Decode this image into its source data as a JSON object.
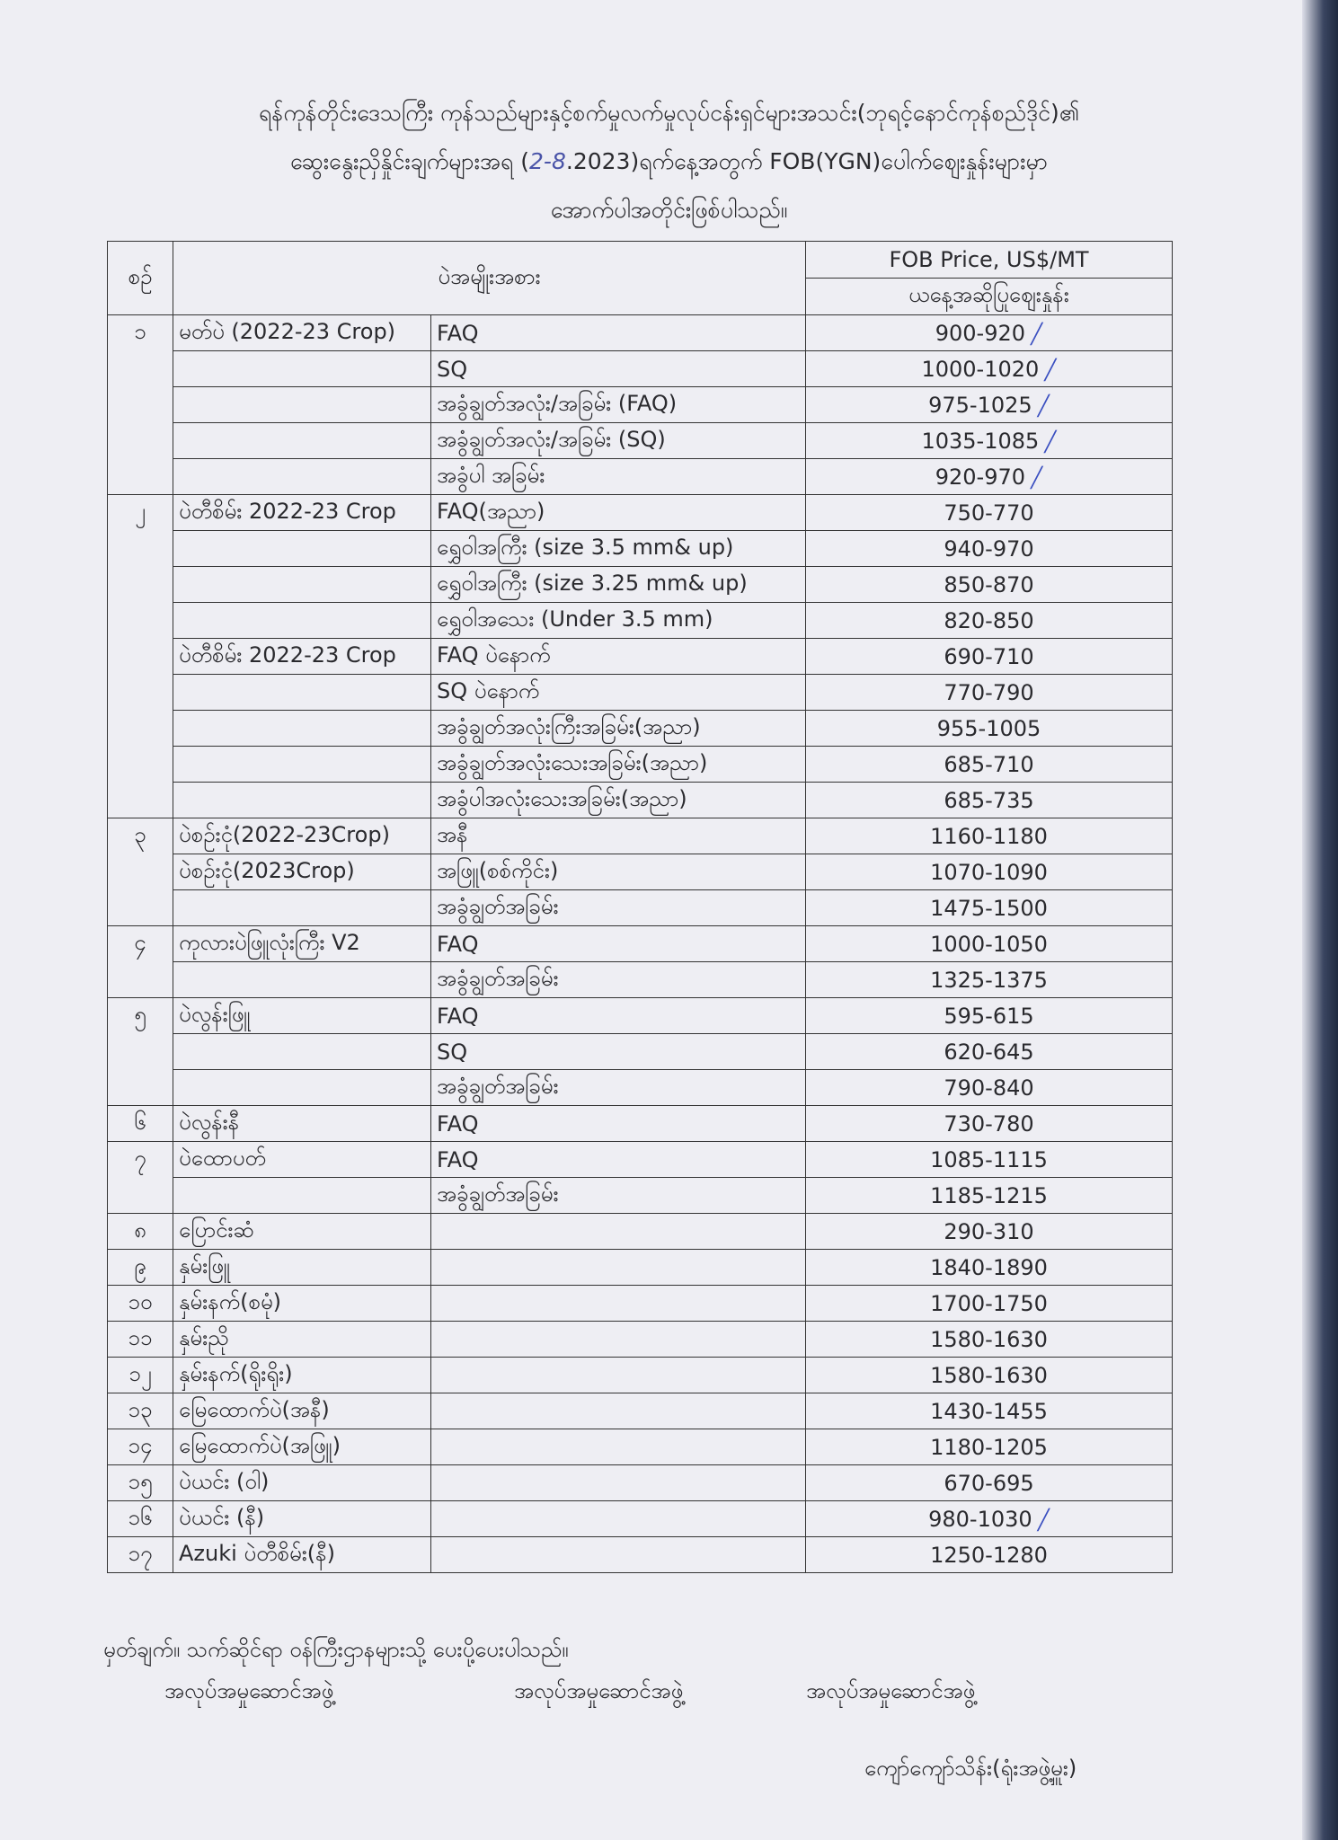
{
  "title": {
    "line1": "ရန်ကုန်တိုင်းဒေသကြီး ကုန်သည်များနှင့်စက်မှုလက်မှုလုပ်ငန်းရှင်များအသင်း(ဘုရင့်နောင်ကုန်စည်ဒိုင်)၏",
    "line2_pre": "ဆွေးနွေးညှိနှိုင်းချက်များအရ (",
    "line2_date": "2-8",
    "line2_post": ".2023)ရက်နေ့အတွက် FOB(YGN)ပေါက်ဈေးနှုန်းများမှာ",
    "line3": "အောက်ပါအတိုင်းဖြစ်ပါသည်။"
  },
  "table": {
    "headers": {
      "no": "စဉ်",
      "type": "ပဲအမျိုးအစား",
      "price": "FOB Price, US$/MT",
      "price_sub": "ယနေ့အဆိုပြုဈေးနှုန်း"
    },
    "check_color": "#3a4fc0",
    "rows": [
      {
        "no": "၁",
        "cat": "မတ်ပဲ (2022-23 Crop)",
        "sub": "FAQ",
        "price": "900-920",
        "check": true
      },
      {
        "no": "",
        "cat": "",
        "sub": "SQ",
        "price": "1000-1020",
        "check": true
      },
      {
        "no": "",
        "cat": "",
        "sub": "အခွံချွတ်အလုံး/အခြမ်း (FAQ)",
        "price": "975-1025",
        "check": true
      },
      {
        "no": "",
        "cat": "",
        "sub": "အခွံချွတ်အလုံး/အခြမ်း (SQ)",
        "price": "1035-1085",
        "check": true
      },
      {
        "no": "",
        "cat": "",
        "sub": "အခွံပါ အခြမ်း",
        "price": "920-970",
        "check": true
      },
      {
        "no": "၂",
        "cat": "ပဲတီစိမ်း 2022-23 Crop",
        "sub": "FAQ(အညာ)",
        "price": "750-770"
      },
      {
        "no": "",
        "cat": "",
        "sub": "ရွှေဝါအကြီး (size 3.5 mm& up)",
        "price": "940-970"
      },
      {
        "no": "",
        "cat": "",
        "sub": "ရွှေဝါအကြီး (size 3.25 mm& up)",
        "price": "850-870"
      },
      {
        "no": "",
        "cat": "",
        "sub": "ရွှေဝါအသေး (Under 3.5 mm)",
        "price": "820-850"
      },
      {
        "no": "",
        "cat": "ပဲတီစိမ်း 2022-23 Crop",
        "sub": "FAQ ပဲနောက်",
        "price": "690-710"
      },
      {
        "no": "",
        "cat": "",
        "sub": "SQ ပဲနောက်",
        "price": "770-790"
      },
      {
        "no": "",
        "cat": "",
        "sub": "အခွံချွတ်အလုံးကြီးအခြမ်း(အညာ)",
        "price": "955-1005"
      },
      {
        "no": "",
        "cat": "",
        "sub": "အခွံချွတ်အလုံးသေးအခြမ်း(အညာ)",
        "price": "685-710"
      },
      {
        "no": "",
        "cat": "",
        "sub": "အခွံပါအလုံးသေးအခြမ်း(အညာ)",
        "price": "685-735"
      },
      {
        "no": "၃",
        "cat": "ပဲစဉ်းငုံ(2022-23Crop)",
        "sub": "အနီ",
        "price": "1160-1180"
      },
      {
        "no": "",
        "cat": "ပဲစဉ်းငုံ(2023Crop)",
        "sub": "အဖြူ(စစ်ကိုင်း)",
        "price": "1070-1090"
      },
      {
        "no": "",
        "cat": "",
        "sub": "အခွံချွတ်အခြမ်း",
        "price": "1475-1500"
      },
      {
        "no": "၄",
        "cat": "ကုလားပဲဖြူလုံးကြီး V2",
        "sub": "FAQ",
        "price": "1000-1050"
      },
      {
        "no": "",
        "cat": "",
        "sub": "အခွံချွတ်အခြမ်း",
        "price": "1325-1375"
      },
      {
        "no": "၅",
        "cat": "ပဲလွန်းဖြူ",
        "sub": "FAQ",
        "price": "595-615"
      },
      {
        "no": "",
        "cat": "",
        "sub": "SQ",
        "price": "620-645"
      },
      {
        "no": "",
        "cat": "",
        "sub": "အခွံချွတ်အခြမ်း",
        "price": "790-840"
      },
      {
        "no": "၆",
        "cat": "ပဲလွန်းနီ",
        "sub": "FAQ",
        "price": "730-780"
      },
      {
        "no": "၇",
        "cat": "ပဲထောပတ်",
        "sub": "FAQ",
        "price": "1085-1115"
      },
      {
        "no": "",
        "cat": "",
        "sub": "အခွံချွတ်အခြမ်း",
        "price": "1185-1215"
      },
      {
        "no": "၈",
        "cat": "ပြောင်းဆံ",
        "sub": "",
        "price": "290-310"
      },
      {
        "no": "၉",
        "cat": "နှမ်းဖြူ",
        "sub": "",
        "price": "1840-1890"
      },
      {
        "no": "၁၀",
        "cat": "နှမ်းနက်(စမုံ)",
        "sub": "",
        "price": "1700-1750"
      },
      {
        "no": "၁၁",
        "cat": "နှမ်းညို",
        "sub": "",
        "price": "1580-1630"
      },
      {
        "no": "၁၂",
        "cat": "နှမ်းနက်(ရိုးရိုး)",
        "sub": "",
        "price": "1580-1630"
      },
      {
        "no": "၁၃",
        "cat": "မြေထောက်ပဲ(အနီ)",
        "sub": "",
        "price": "1430-1455"
      },
      {
        "no": "၁၄",
        "cat": "မြေထောက်ပဲ(အဖြူ)",
        "sub": "",
        "price": "1180-1205"
      },
      {
        "no": "၁၅",
        "cat": "ပဲယင်း (ဝါ)",
        "sub": "",
        "price": "670-695"
      },
      {
        "no": "၁၆",
        "cat": "ပဲယင်း (နီ)",
        "sub": "",
        "price": "980-1030",
        "check": true
      },
      {
        "no": "၁၇",
        "cat": "Azuki ပဲတီစိမ်း(နီ)",
        "sub": "",
        "price": "1250-1280"
      }
    ]
  },
  "footer": {
    "note": "မှတ်ချက်။ သက်ဆိုင်ရာ ဝန်ကြီးဌာနများသို့ ပေးပို့ပေးပါသည်။",
    "signatures": [
      "အလုပ်အမှုဆောင်အဖွဲ့",
      "အလုပ်အမှုဆောင်အဖွဲ့",
      "အလုပ်အမှုဆောင်အဖွဲ့"
    ],
    "signer": "ကျော်ကျော်သိန်း(ရုံးအဖွဲ့မှူး)"
  }
}
